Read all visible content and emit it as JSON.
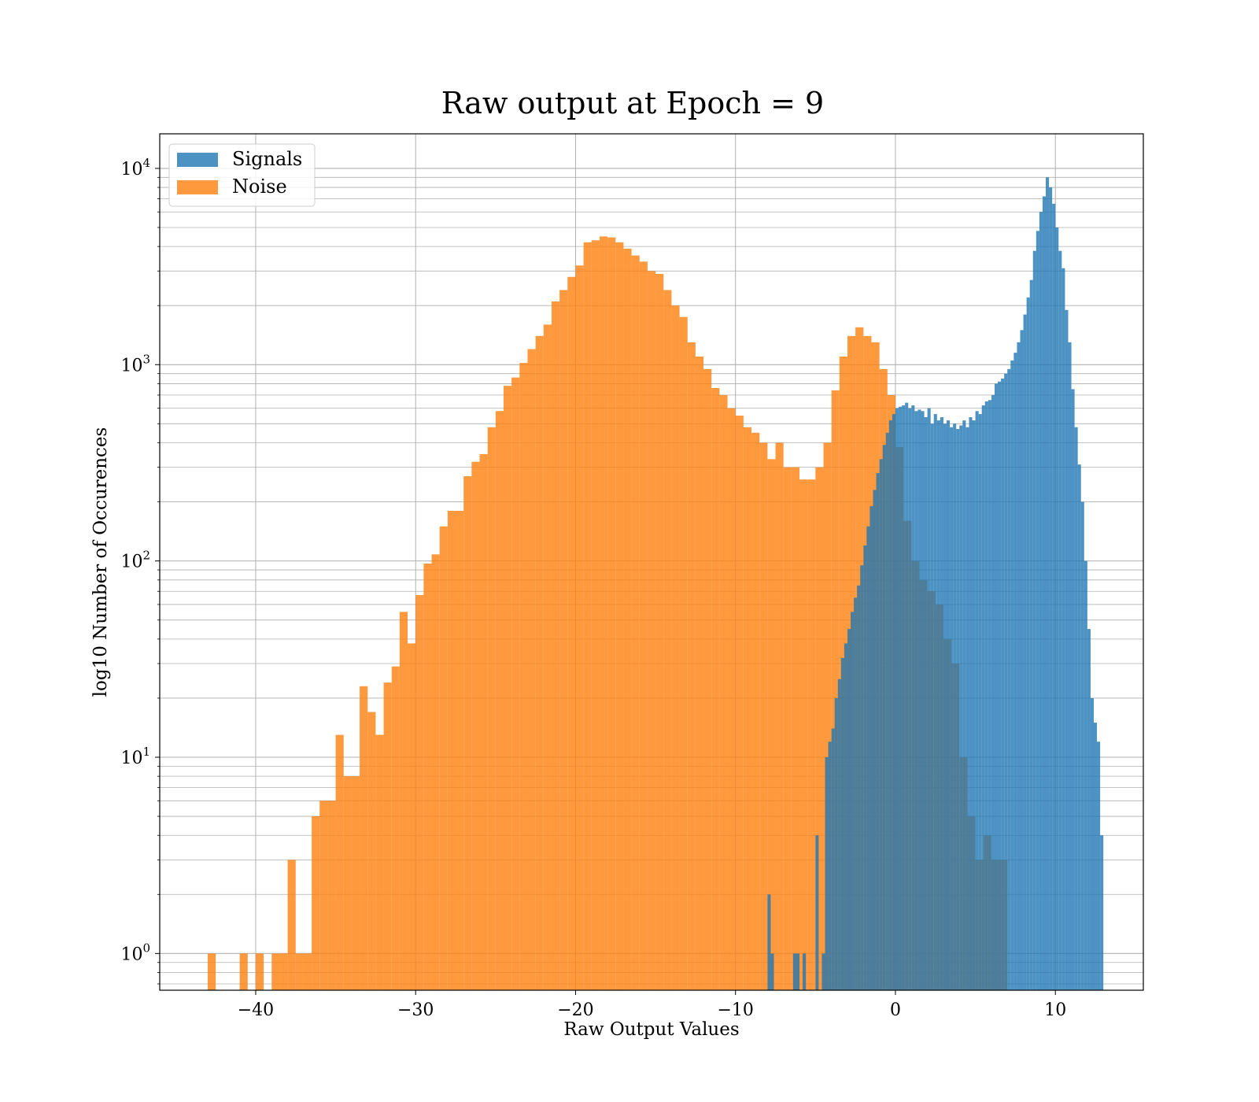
{
  "chart_data": {
    "type": "bar",
    "subtype": "histogram",
    "title": "Raw output at Epoch = 9",
    "xlabel": "Raw Output Values",
    "ylabel": "log10 Number of Occurences",
    "xlim": [
      -46,
      15.5
    ],
    "ylim": [
      0.65,
      15000
    ],
    "y_scale": "log",
    "grid": "on (major and minor)",
    "legend_position": "top-left",
    "x_ticks": [
      -40,
      -30,
      -20,
      -10,
      0,
      10
    ],
    "x_tick_labels": [
      "−40",
      "−30",
      "−20",
      "−10",
      "0",
      "10"
    ],
    "y_ticks": [
      1,
      10,
      100,
      1000,
      10000
    ],
    "y_tick_labels": [
      {
        "base": "10",
        "exp": "0"
      },
      {
        "base": "10",
        "exp": "1"
      },
      {
        "base": "10",
        "exp": "2"
      },
      {
        "base": "10",
        "exp": "3"
      },
      {
        "base": "10",
        "exp": "4"
      }
    ],
    "series": [
      {
        "name": "Noise",
        "color": "#ff7f0e",
        "opacity": 0.8,
        "bin_width": 0.5,
        "bins": [
          [
            -43.0,
            1
          ],
          [
            -41.0,
            1
          ],
          [
            -40.0,
            1
          ],
          [
            -39.0,
            1
          ],
          [
            -38.5,
            1
          ],
          [
            -38.0,
            3
          ],
          [
            -37.5,
            1
          ],
          [
            -37.0,
            1
          ],
          [
            -36.5,
            5
          ],
          [
            -36.0,
            6
          ],
          [
            -35.5,
            6
          ],
          [
            -35.0,
            13
          ],
          [
            -34.5,
            8
          ],
          [
            -34.0,
            8
          ],
          [
            -33.5,
            23
          ],
          [
            -33.0,
            17
          ],
          [
            -32.5,
            13
          ],
          [
            -32.0,
            24
          ],
          [
            -31.5,
            29
          ],
          [
            -31.0,
            55
          ],
          [
            -30.5,
            38
          ],
          [
            -30.0,
            67
          ],
          [
            -29.5,
            97
          ],
          [
            -29.0,
            108
          ],
          [
            -28.5,
            150
          ],
          [
            -28.0,
            180
          ],
          [
            -27.5,
            180
          ],
          [
            -27.0,
            270
          ],
          [
            -26.5,
            320
          ],
          [
            -26.0,
            350
          ],
          [
            -25.5,
            480
          ],
          [
            -25.0,
            580
          ],
          [
            -24.5,
            780
          ],
          [
            -24.0,
            860
          ],
          [
            -23.5,
            1020
          ],
          [
            -23.0,
            1200
          ],
          [
            -22.5,
            1400
          ],
          [
            -22.0,
            1600
          ],
          [
            -21.5,
            2100
          ],
          [
            -21.0,
            2400
          ],
          [
            -20.5,
            2800
          ],
          [
            -20.0,
            3200
          ],
          [
            -19.5,
            4200
          ],
          [
            -19.0,
            4300
          ],
          [
            -18.5,
            4500
          ],
          [
            -18.0,
            4450
          ],
          [
            -17.5,
            4200
          ],
          [
            -17.0,
            3900
          ],
          [
            -16.5,
            3600
          ],
          [
            -16.0,
            3350
          ],
          [
            -15.5,
            3000
          ],
          [
            -15.0,
            2900
          ],
          [
            -14.5,
            2400
          ],
          [
            -14.0,
            2000
          ],
          [
            -13.5,
            1750
          ],
          [
            -13.0,
            1300
          ],
          [
            -12.5,
            1100
          ],
          [
            -12.0,
            950
          ],
          [
            -11.5,
            760
          ],
          [
            -11.0,
            700
          ],
          [
            -10.5,
            600
          ],
          [
            -10.0,
            550
          ],
          [
            -9.5,
            480
          ],
          [
            -9.0,
            450
          ],
          [
            -8.5,
            400
          ],
          [
            -8.0,
            330
          ],
          [
            -7.5,
            400
          ],
          [
            -7.0,
            300
          ],
          [
            -6.5,
            300
          ],
          [
            -6.0,
            260
          ],
          [
            -5.5,
            260
          ],
          [
            -5.0,
            300
          ],
          [
            -4.5,
            400
          ],
          [
            -4.0,
            740
          ],
          [
            -3.5,
            1100
          ],
          [
            -3.0,
            1400
          ],
          [
            -2.5,
            1550
          ],
          [
            -2.0,
            1400
          ],
          [
            -1.5,
            1300
          ],
          [
            -1.0,
            950
          ],
          [
            -0.5,
            700
          ],
          [
            0.0,
            380
          ],
          [
            0.5,
            160
          ],
          [
            1.0,
            100
          ],
          [
            1.5,
            80
          ],
          [
            2.0,
            70
          ],
          [
            2.5,
            60
          ],
          [
            3.0,
            40
          ],
          [
            3.5,
            30
          ],
          [
            4.0,
            10
          ],
          [
            4.5,
            5
          ],
          [
            5.0,
            3
          ],
          [
            5.5,
            4
          ],
          [
            6.0,
            3
          ],
          [
            6.5,
            3
          ]
        ]
      },
      {
        "name": "Signals",
        "color": "#1f77b4",
        "opacity": 0.8,
        "bin_width": 0.2,
        "bins": [
          [
            -8.0,
            2
          ],
          [
            -7.8,
            1
          ],
          [
            -6.4,
            1
          ],
          [
            -6.2,
            1
          ],
          [
            -5.8,
            1
          ],
          [
            -5.0,
            4
          ],
          [
            -4.6,
            1
          ],
          [
            -4.4,
            10
          ],
          [
            -4.2,
            12
          ],
          [
            -4.0,
            14
          ],
          [
            -3.8,
            20
          ],
          [
            -3.6,
            25
          ],
          [
            -3.4,
            32
          ],
          [
            -3.2,
            38
          ],
          [
            -3.0,
            45
          ],
          [
            -2.8,
            55
          ],
          [
            -2.6,
            65
          ],
          [
            -2.4,
            75
          ],
          [
            -2.2,
            95
          ],
          [
            -2.0,
            120
          ],
          [
            -1.8,
            150
          ],
          [
            -1.6,
            190
          ],
          [
            -1.4,
            230
          ],
          [
            -1.2,
            280
          ],
          [
            -1.0,
            330
          ],
          [
            -0.8,
            390
          ],
          [
            -0.6,
            450
          ],
          [
            -0.4,
            520
          ],
          [
            -0.2,
            560
          ],
          [
            0.0,
            600
          ],
          [
            0.2,
            610
          ],
          [
            0.4,
            620
          ],
          [
            0.6,
            640
          ],
          [
            0.8,
            600
          ],
          [
            1.0,
            620
          ],
          [
            1.2,
            580
          ],
          [
            1.4,
            590
          ],
          [
            1.6,
            580
          ],
          [
            1.8,
            540
          ],
          [
            2.0,
            600
          ],
          [
            2.2,
            500
          ],
          [
            2.4,
            560
          ],
          [
            2.6,
            520
          ],
          [
            2.8,
            540
          ],
          [
            3.0,
            500
          ],
          [
            3.2,
            520
          ],
          [
            3.4,
            480
          ],
          [
            3.6,
            500
          ],
          [
            3.8,
            470
          ],
          [
            4.0,
            490
          ],
          [
            4.2,
            520
          ],
          [
            4.4,
            480
          ],
          [
            4.6,
            540
          ],
          [
            4.8,
            520
          ],
          [
            5.0,
            580
          ],
          [
            5.2,
            560
          ],
          [
            5.4,
            620
          ],
          [
            5.6,
            650
          ],
          [
            5.8,
            660
          ],
          [
            6.0,
            700
          ],
          [
            6.2,
            800
          ],
          [
            6.4,
            820
          ],
          [
            6.6,
            850
          ],
          [
            6.8,
            900
          ],
          [
            7.0,
            950
          ],
          [
            7.2,
            1050
          ],
          [
            7.4,
            1150
          ],
          [
            7.6,
            1300
          ],
          [
            7.8,
            1500
          ],
          [
            8.0,
            1800
          ],
          [
            8.2,
            2200
          ],
          [
            8.4,
            2700
          ],
          [
            8.6,
            3800
          ],
          [
            8.8,
            4800
          ],
          [
            9.0,
            6000
          ],
          [
            9.2,
            7200
          ],
          [
            9.4,
            9000
          ],
          [
            9.6,
            8000
          ],
          [
            9.8,
            6600
          ],
          [
            10.0,
            5000
          ],
          [
            10.2,
            3800
          ],
          [
            10.4,
            3100
          ],
          [
            10.6,
            1900
          ],
          [
            10.8,
            1300
          ],
          [
            11.0,
            750
          ],
          [
            11.2,
            480
          ],
          [
            11.4,
            310
          ],
          [
            11.6,
            200
          ],
          [
            11.8,
            100
          ],
          [
            12.0,
            45
          ],
          [
            12.2,
            20
          ],
          [
            12.4,
            15
          ],
          [
            12.6,
            12
          ],
          [
            12.8,
            4
          ]
        ]
      }
    ]
  }
}
